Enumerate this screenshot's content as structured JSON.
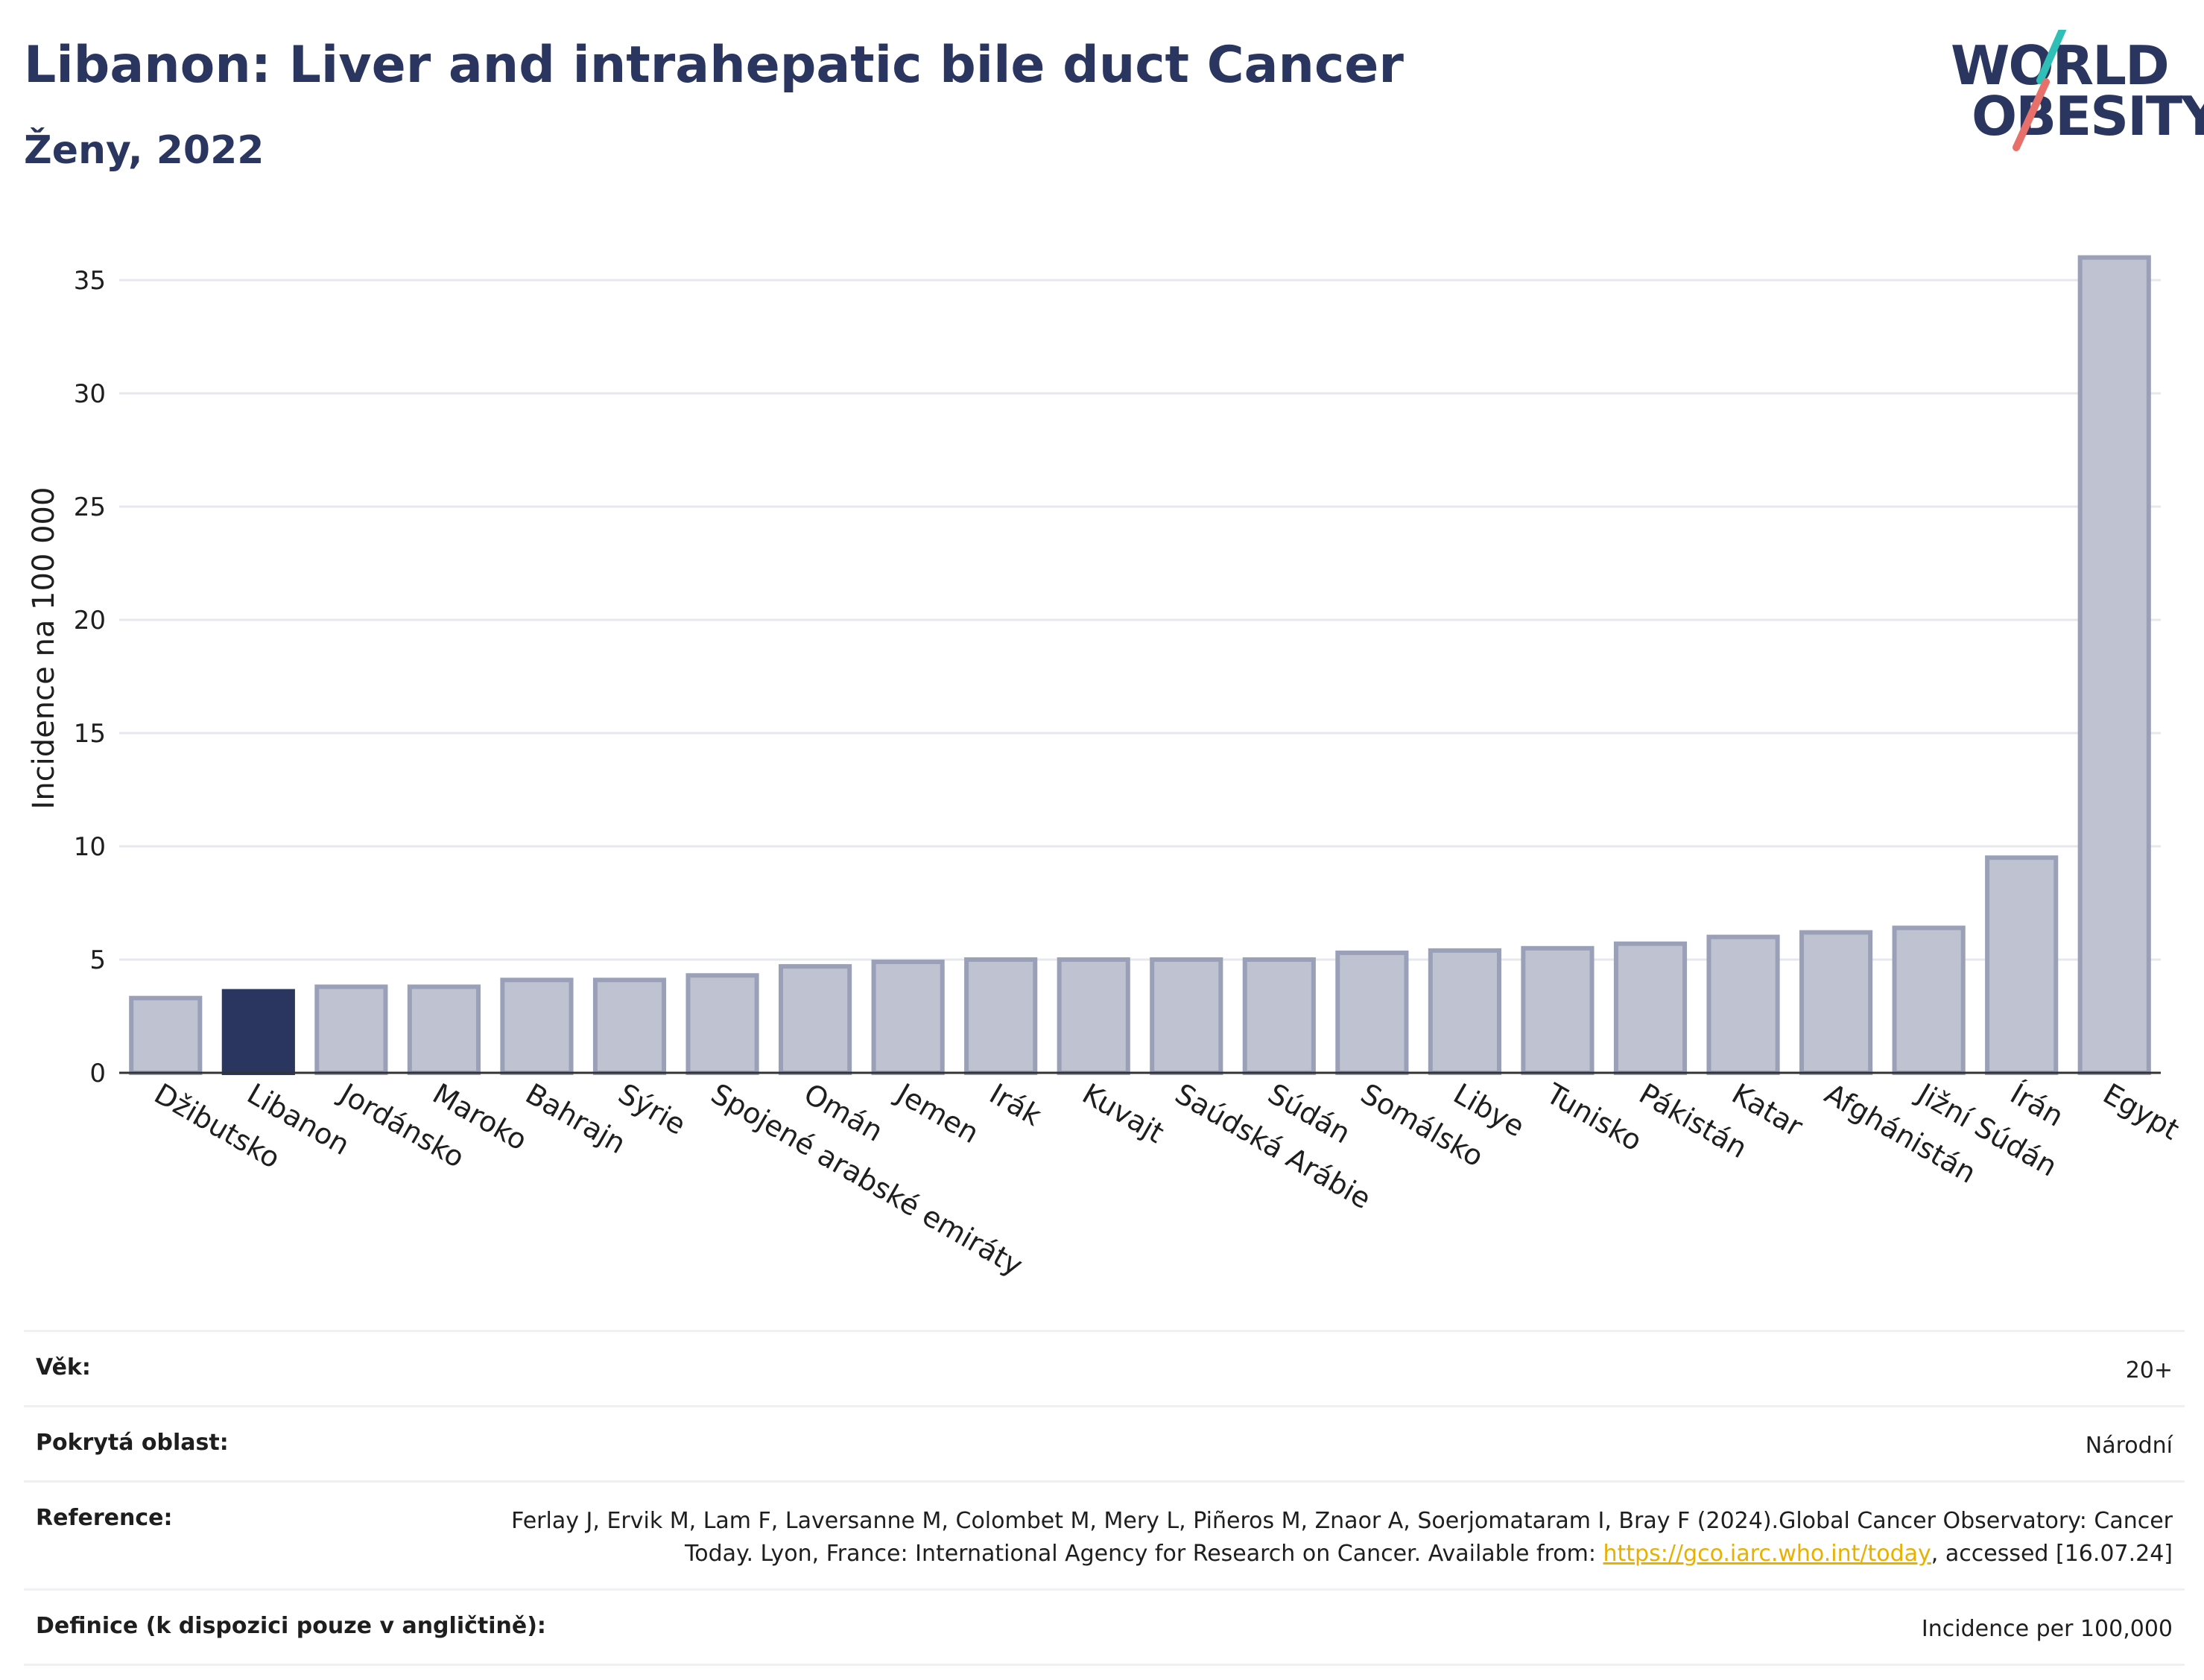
{
  "header": {
    "title": "Libanon: Liver and intrahepatic bile duct Cancer",
    "subtitle": "Ženy, 2022"
  },
  "logo": {
    "line1": "WORLD",
    "line2": "OBESITY",
    "colors": {
      "teal": "#2fbfb6",
      "coral": "#e8706a"
    }
  },
  "chart_data": {
    "type": "bar",
    "ylabel": "Incidence na 100 000",
    "xlabel": "",
    "ylim": [
      0,
      37.5
    ],
    "yticks": [
      0,
      5,
      10,
      15,
      20,
      25,
      30,
      35
    ],
    "grid": true,
    "highlight": "Libanon",
    "colors": {
      "bar": "#bfc3d1",
      "bar_edge": "#9aa0b8",
      "highlight": "#2a3560"
    },
    "categories": [
      "Džibutsko",
      "Libanon",
      "Jordánsko",
      "Maroko",
      "Bahrajn",
      "Sýrie",
      "Spojené arabské emiráty",
      "Omán",
      "Jemen",
      "Irák",
      "Kuvajt",
      "Saúdská Arábie",
      "Súdán",
      "Somálsko",
      "Libye",
      "Tunisko",
      "Pákistán",
      "Katar",
      "Afghánistán",
      "Jižní Súdán",
      "Írán",
      "Egypt"
    ],
    "values": [
      3.3,
      3.6,
      3.8,
      3.8,
      4.1,
      4.1,
      4.3,
      4.7,
      4.9,
      5.0,
      5.0,
      5.0,
      5.0,
      5.3,
      5.4,
      5.5,
      5.7,
      6.0,
      6.2,
      6.4,
      9.5,
      36.0
    ]
  },
  "meta": {
    "age_label": "Věk:",
    "age_value": "20+",
    "area_label": "Pokrytá oblast:",
    "area_value": "Národní",
    "ref_label": "Reference:",
    "ref_text_1": "Ferlay J, Ervik M, Lam F, Laversanne M, Colombet M, Mery L, Piñeros M, Znaor A, Soerjomataram I, Bray F (2024).Global Cancer Observatory: Cancer Today. Lyon, France: International Agency for Research on Cancer. Available from: ",
    "ref_link": "https://gco.iarc.who.int/today",
    "ref_text_2": ", accessed [16.07.24]",
    "def_label": "Definice (k dispozici pouze v angličtině):",
    "def_value": "Incidence per 100,000"
  }
}
